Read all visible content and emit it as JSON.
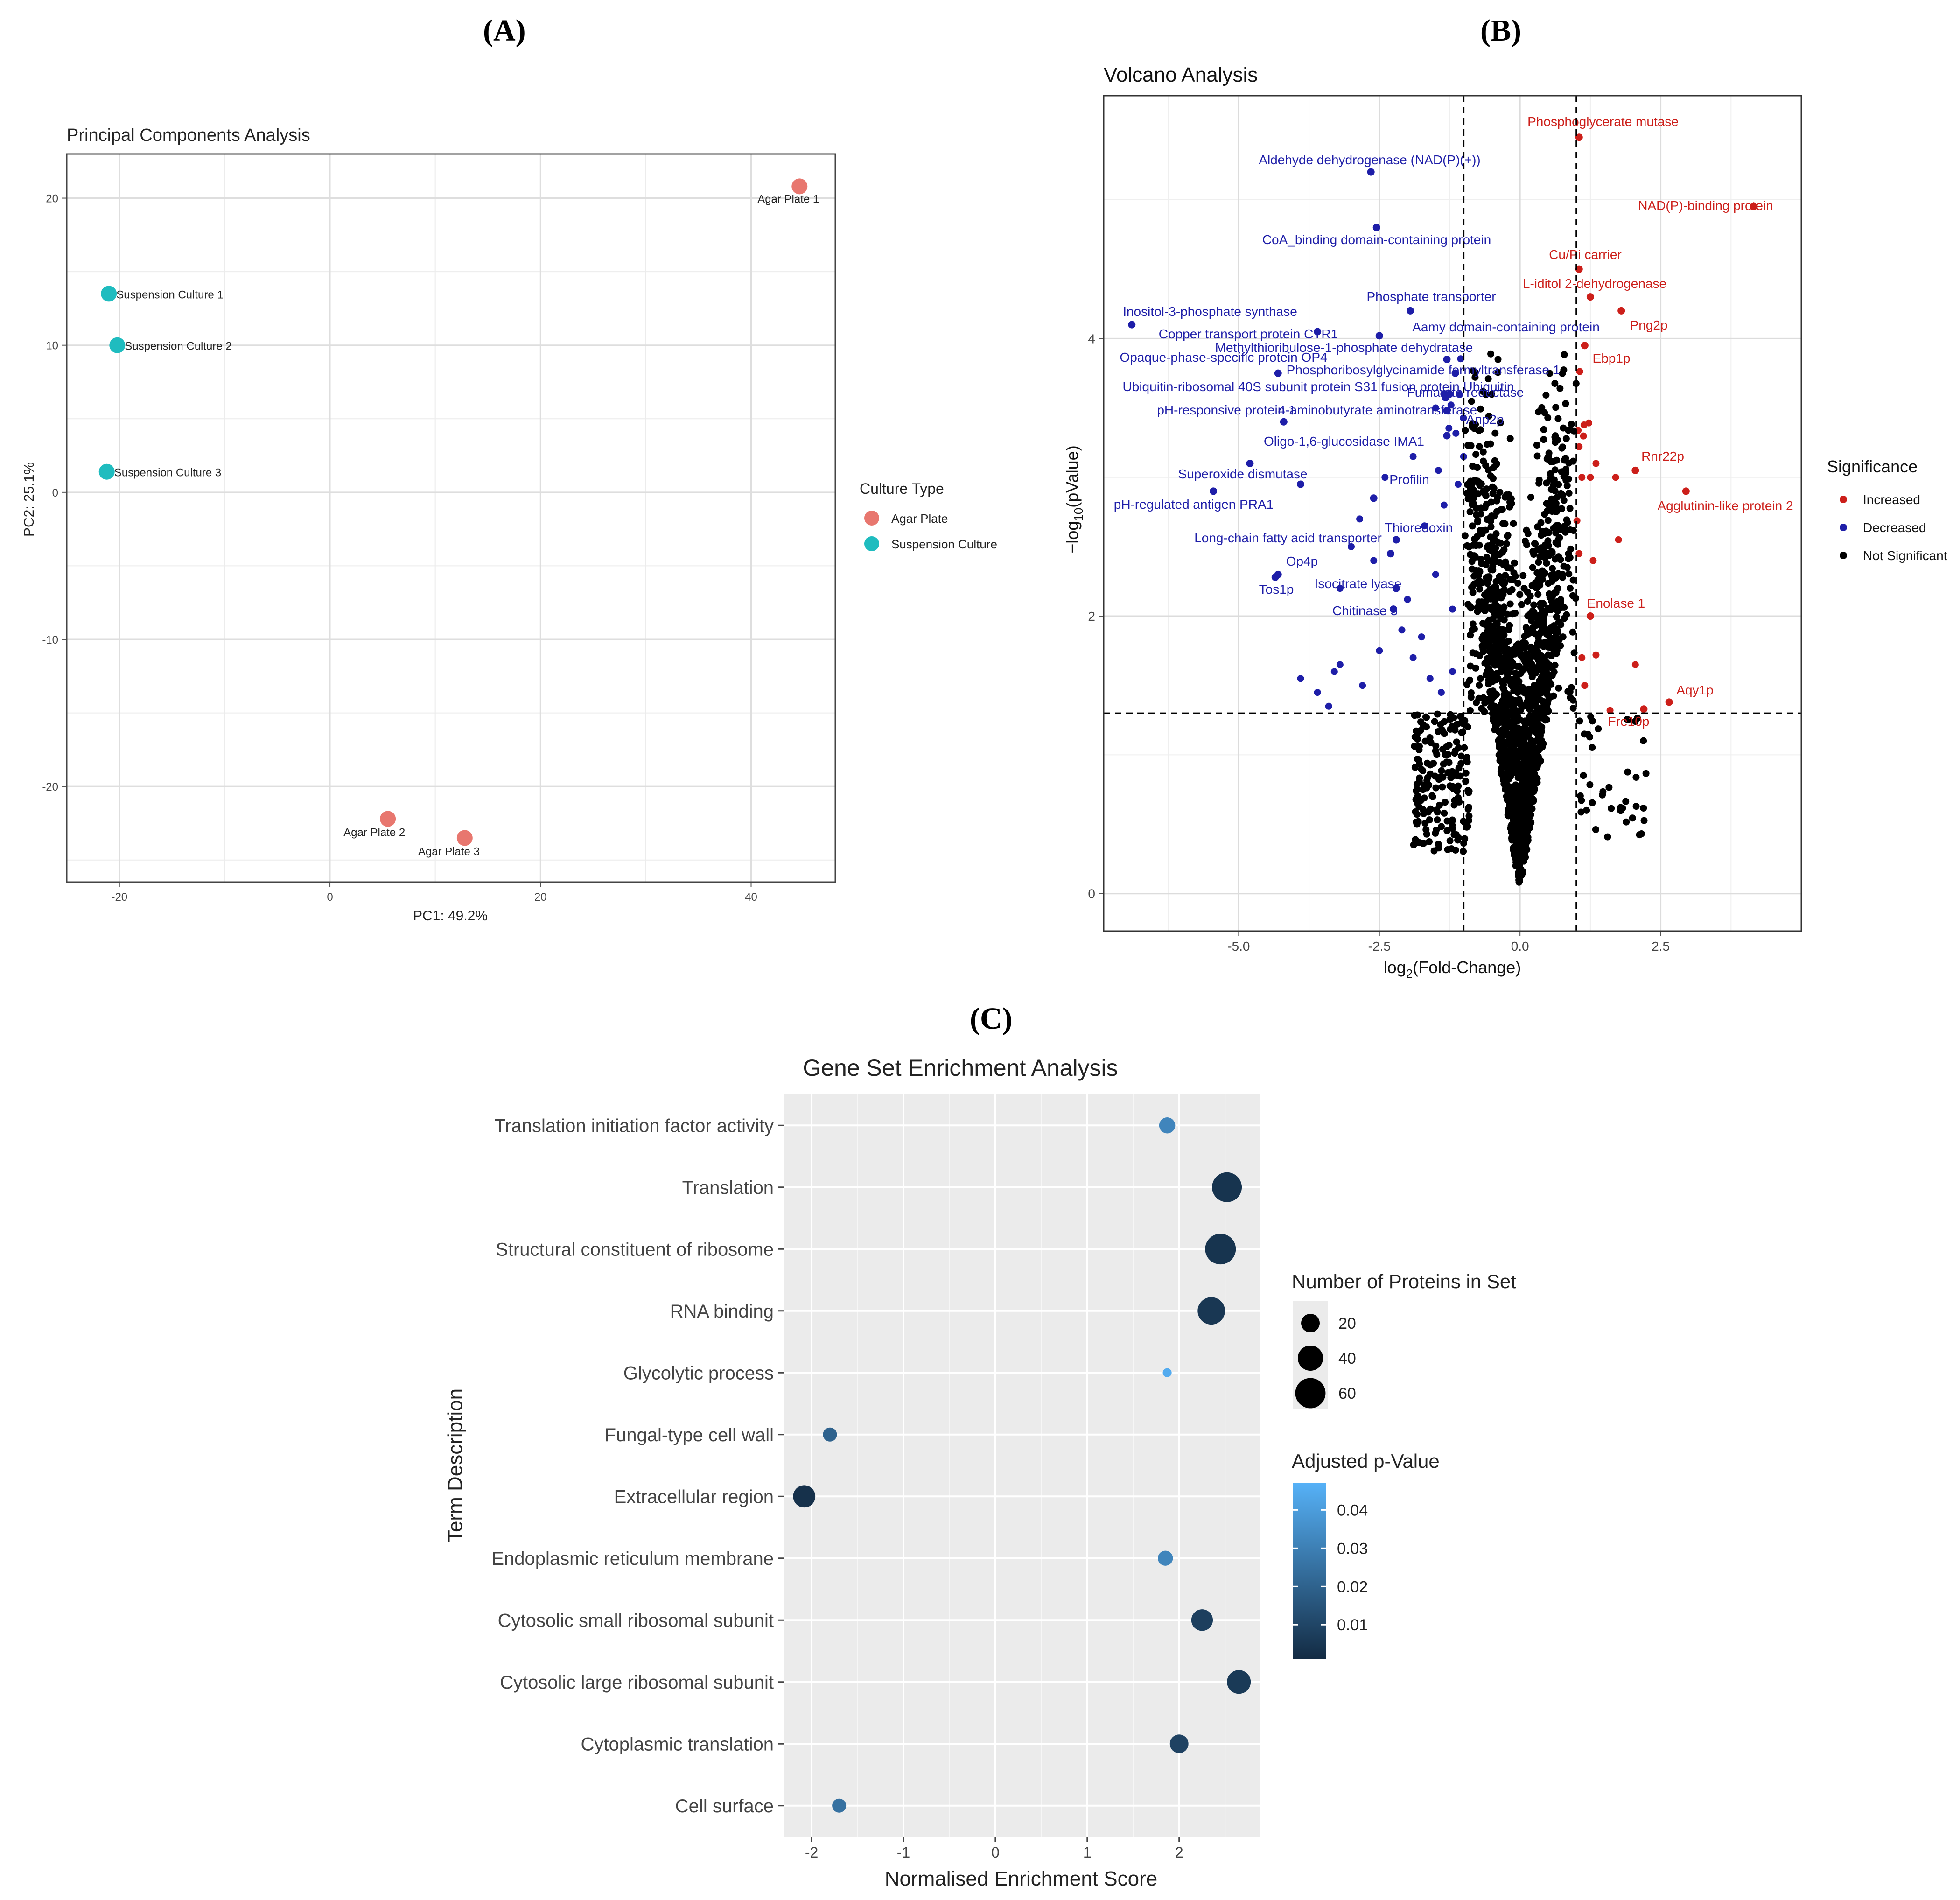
{
  "panels": {
    "a_label": "(A)",
    "b_label": "(B)",
    "c_label": "(C)"
  },
  "chart_data": [
    {
      "id": "pca",
      "type": "scatter",
      "title": "Principal Components Analysis",
      "xlabel": "PC1: 49.2%",
      "ylabel": "PC2: 25.1%",
      "xlim": [
        -25,
        48
      ],
      "ylim": [
        -26.5,
        23
      ],
      "xticks": [
        -20,
        0,
        20,
        40
      ],
      "yticks": [
        -20,
        -10,
        0,
        10,
        20
      ],
      "legend": {
        "title": "Culture Type",
        "position": "right",
        "items": [
          {
            "label": "Agar Plate",
            "color": "#E8776F"
          },
          {
            "label": "Suspension Culture",
            "color": "#1FBCBF"
          }
        ]
      },
      "points": [
        {
          "label": "Agar Plate 1",
          "group": 0,
          "x": 44.6,
          "y": 20.8
        },
        {
          "label": "Agar Plate 2",
          "group": 0,
          "x": 5.5,
          "y": -22.2
        },
        {
          "label": "Agar Plate 3",
          "group": 0,
          "x": 12.8,
          "y": -23.5
        },
        {
          "label": "Suspension Culture 1",
          "group": 1,
          "x": -21.0,
          "y": 13.5
        },
        {
          "label": "Suspension Culture 2",
          "group": 1,
          "x": -20.2,
          "y": 10.0
        },
        {
          "label": "Suspension Culture 3",
          "group": 1,
          "x": -21.2,
          "y": 1.4
        }
      ]
    },
    {
      "id": "volcano",
      "type": "scatter",
      "title": "Volcano Analysis",
      "xlabel_main": "log",
      "xlabel_sub": "2",
      "xlabel_rest": "(Fold-Change)",
      "ylabel_pre": "−log",
      "ylabel_sub": "10",
      "ylabel_rest": "(pValue)",
      "xlim": [
        -7.4,
        5.0
      ],
      "ylim": [
        -0.27,
        5.75
      ],
      "xticks": [
        -5.0,
        -2.5,
        0.0,
        2.5
      ],
      "yticks": [
        0,
        2,
        4
      ],
      "fc_threshold": [
        -1,
        1
      ],
      "p_threshold": 1.3,
      "legend": {
        "title": "Significance",
        "position": "right",
        "items": [
          {
            "label": "Increased",
            "color": "#CC1F1A"
          },
          {
            "label": "Decreased",
            "color": "#1E1EA8"
          },
          {
            "label": "Not Significant",
            "color": "#000000"
          }
        ]
      },
      "labeled_points": [
        {
          "label": "Phosphoglycerate mutase",
          "x": 1.05,
          "y": 5.45,
          "sig": "inc"
        },
        {
          "label": "NAD(P)-binding protein",
          "x": 4.15,
          "y": 4.95,
          "sig": "inc"
        },
        {
          "label": "Cu/Pi carrier",
          "x": 1.05,
          "y": 4.5,
          "sig": "inc"
        },
        {
          "label": "L-iditol 2-dehydrogenase",
          "x": 1.25,
          "y": 4.3,
          "sig": "inc"
        },
        {
          "label": "Png2p",
          "x": 1.8,
          "y": 4.2,
          "sig": "inc"
        },
        {
          "label": "Ebp1p",
          "x": 1.15,
          "y": 3.95,
          "sig": "inc"
        },
        {
          "label": "Rnr22p",
          "x": 2.05,
          "y": 3.05,
          "sig": "inc"
        },
        {
          "label": "Agglutinin-like protein 2",
          "x": 2.95,
          "y": 2.9,
          "sig": "inc"
        },
        {
          "label": "Enolase 1",
          "x": 1.25,
          "y": 2.0,
          "sig": "inc"
        },
        {
          "label": "Aqy1p",
          "x": 2.65,
          "y": 1.38,
          "sig": "inc"
        },
        {
          "label": "Fre10p",
          "x": 2.2,
          "y": 1.33,
          "sig": "inc"
        },
        {
          "label": "Aldehyde dehydrogenase (NAD(P)(+))",
          "x": -2.65,
          "y": 5.2,
          "sig": "dec"
        },
        {
          "label": "CoA_binding domain-containing protein",
          "x": -2.55,
          "y": 4.8,
          "sig": "dec"
        },
        {
          "label": "Phosphate transporter",
          "x": -1.95,
          "y": 4.2,
          "sig": "dec"
        },
        {
          "label": "Inositol-3-phosphate synthase",
          "x": -6.9,
          "y": 4.1,
          "sig": "dec"
        },
        {
          "label": "Copper transport protein CTR1",
          "x": -3.6,
          "y": 4.05,
          "sig": "dec"
        },
        {
          "label": "Aamy domain-containing protein",
          "x": -2.5,
          "y": 4.02,
          "sig": "dec"
        },
        {
          "label": "Methylthioribulose-1-phosphate dehydratase",
          "x": -1.3,
          "y": 3.85,
          "sig": "dec"
        },
        {
          "label": "Opaque-phase-specific protein OP4",
          "x": -4.3,
          "y": 3.75,
          "sig": "dec"
        },
        {
          "label": "Phosphoribosylglycinamide formyltransferase 1",
          "x": -1.15,
          "y": 3.75,
          "sig": "dec"
        },
        {
          "label": "Ubiquitin-ribosomal 40S subunit protein S31 fusion protein Ubiquitin",
          "x": -1.35,
          "y": 3.6,
          "sig": "dec"
        },
        {
          "label": "Fumarate reductase",
          "x": -1.25,
          "y": 3.6,
          "sig": "dec"
        },
        {
          "label": "pH-responsive protein 1",
          "x": -4.2,
          "y": 3.4,
          "sig": "dec"
        },
        {
          "label": "4-aminobutyrate aminotransferase",
          "x": -1.3,
          "y": 3.48,
          "sig": "dec"
        },
        {
          "label": "Anp2p",
          "x": -1.3,
          "y": 3.3,
          "sig": "dec"
        },
        {
          "label": "Oligo-1,6-glucosidase IMA1",
          "x": -4.8,
          "y": 3.1,
          "sig": "dec"
        },
        {
          "label": "Superoxide dismutase",
          "x": -3.9,
          "y": 2.95,
          "sig": "dec"
        },
        {
          "label": "Profilin",
          "x": -2.6,
          "y": 2.85,
          "sig": "dec"
        },
        {
          "label": "pH-regulated antigen PRA1",
          "x": -5.45,
          "y": 2.9,
          "sig": "dec"
        },
        {
          "label": "Thioredoxin",
          "x": -2.2,
          "y": 2.55,
          "sig": "dec"
        },
        {
          "label": "Long-chain fatty acid transporter",
          "x": -2.3,
          "y": 2.45,
          "sig": "dec"
        },
        {
          "label": "Op4p",
          "x": -4.3,
          "y": 2.3,
          "sig": "dec"
        },
        {
          "label": "Tos1p",
          "x": -4.35,
          "y": 2.28,
          "sig": "dec"
        },
        {
          "label": "Isocitrate lyase",
          "x": -2.2,
          "y": 2.2,
          "sig": "dec"
        },
        {
          "label": "Chitinase 3",
          "x": -2.25,
          "y": 2.05,
          "sig": "dec"
        }
      ]
    },
    {
      "id": "gsea",
      "type": "scatter",
      "title": "Gene Set Enrichment Analysis",
      "xlabel": "Normalised Enrichment Score",
      "ylabel": "Term Description",
      "xlim": [
        -2.3,
        2.88
      ],
      "xticks": [
        -2,
        -1,
        0,
        1,
        2
      ],
      "categories": [
        "Translation initiation factor activity",
        "Translation",
        "Structural constituent of ribosome",
        "RNA binding",
        "Glycolytic process",
        "Fungal-type cell wall",
        "Extracellular region",
        "Endoplasmic reticulum membrane",
        "Cytosolic small ribosomal subunit",
        "Cytosolic large ribosomal subunit",
        "Cytoplasmic translation",
        "Cell surface"
      ],
      "nes": [
        1.87,
        2.52,
        2.45,
        2.35,
        1.87,
        -1.8,
        -2.08,
        1.85,
        2.25,
        2.65,
        2.0,
        -1.7
      ],
      "protein_count": [
        14,
        58,
        62,
        48,
        3,
        10,
        30,
        12,
        28,
        35,
        20,
        10
      ],
      "adj_p": [
        0.032,
        0.004,
        0.004,
        0.005,
        0.045,
        0.02,
        0.003,
        0.032,
        0.008,
        0.006,
        0.009,
        0.025
      ],
      "size_legend": {
        "title": "Number of Proteins in Set",
        "values": [
          20,
          40,
          60
        ]
      },
      "color_legend": {
        "title": "Adjusted p-Value",
        "ticks": [
          0.04,
          0.03,
          0.02,
          0.01
        ],
        "range": [
          0.001,
          0.047
        ],
        "low_color": "#132B43",
        "high_color": "#56B1F7"
      }
    }
  ]
}
